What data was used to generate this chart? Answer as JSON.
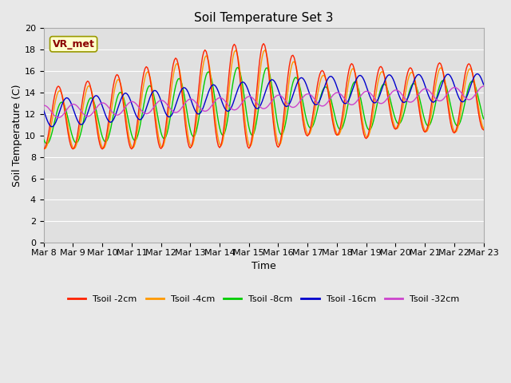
{
  "title": "Soil Temperature Set 3",
  "xlabel": "Time",
  "ylabel": "Soil Temperature (C)",
  "ylim": [
    0,
    20
  ],
  "yticks": [
    0,
    2,
    4,
    6,
    8,
    10,
    12,
    14,
    16,
    18,
    20
  ],
  "series_colors": [
    "#ff2200",
    "#ff9900",
    "#00cc00",
    "#0000cc",
    "#cc44cc"
  ],
  "series_labels": [
    "Tsoil -2cm",
    "Tsoil -4cm",
    "Tsoil -8cm",
    "Tsoil -16cm",
    "Tsoil -32cm"
  ],
  "annotation_text": "VR_met",
  "title_fontsize": 11,
  "axis_label_fontsize": 9,
  "tick_fontsize": 8,
  "legend_fontsize": 8,
  "fig_bg": "#e8e8e8",
  "plot_bg": "#e0e0e0",
  "grid_color": "#ffffff"
}
